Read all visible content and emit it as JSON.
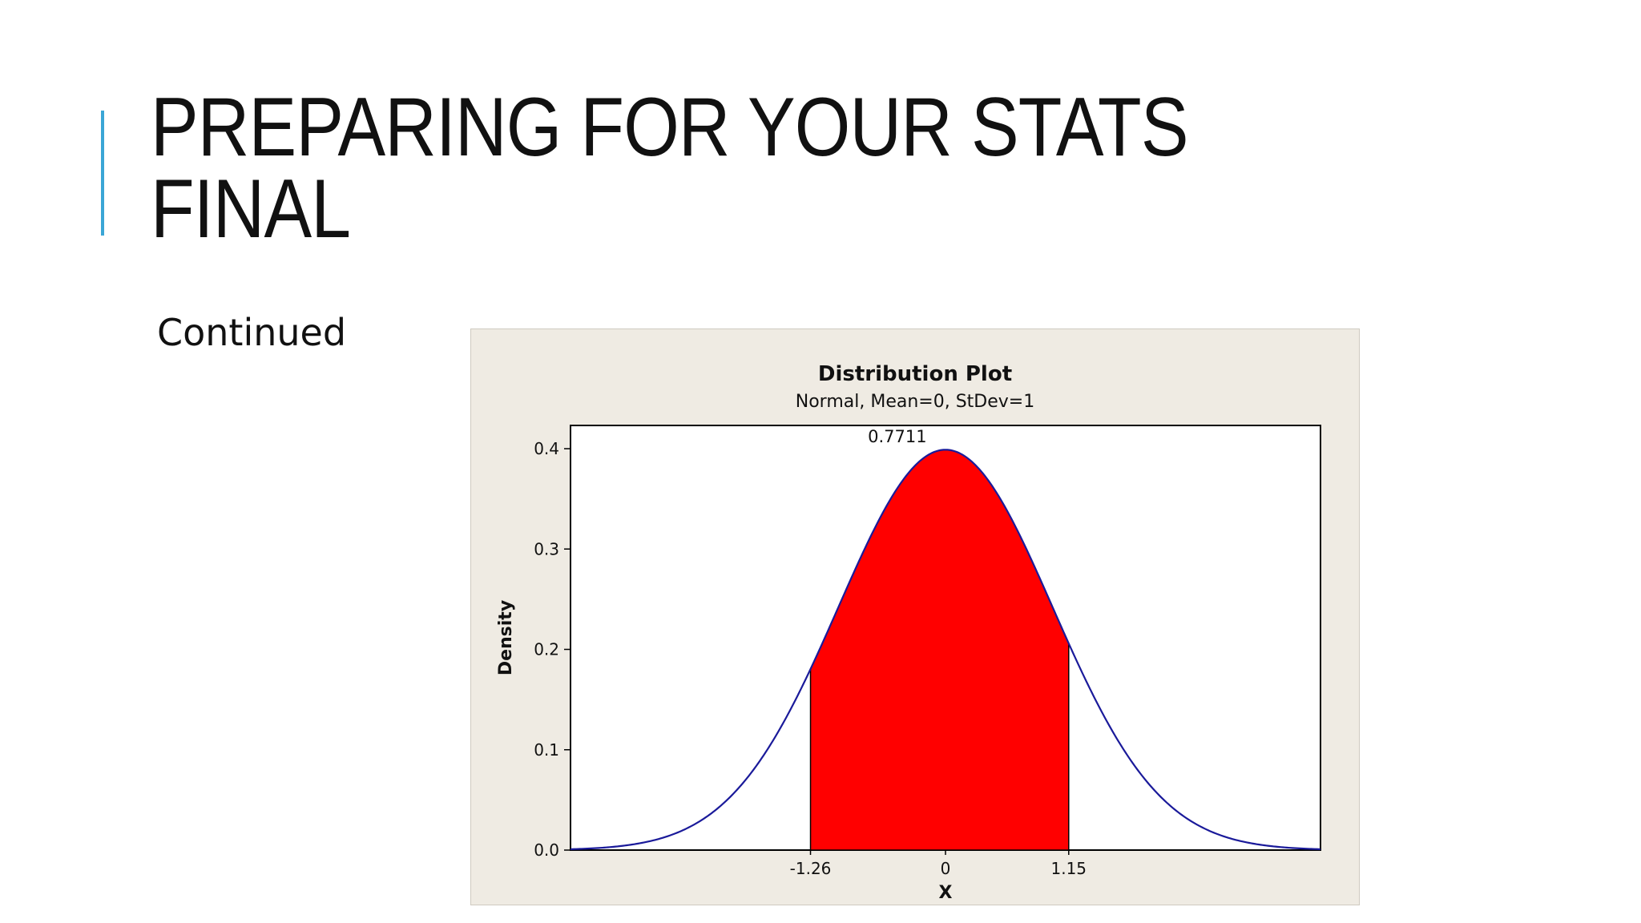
{
  "slide": {
    "title": "PREPARING FOR YOUR STATS FINAL",
    "subtitle": "Continued",
    "accent_color": "#3aa6d6"
  },
  "chart_data": {
    "type": "area",
    "title": "Distribution Plot",
    "subtitle": "Normal, Mean=0, StDev=1",
    "distribution": {
      "name": "Normal",
      "mean": 0,
      "stdev": 1
    },
    "xlabel": "X",
    "ylabel": "Density",
    "xlim": [
      -3.5,
      3.5
    ],
    "ylim": [
      0,
      0.4
    ],
    "yticks": [
      0.0,
      0.1,
      0.2,
      0.3,
      0.4
    ],
    "y_tick_labels": [
      "0.0",
      "0.1",
      "0.2",
      "0.3",
      "0.4"
    ],
    "shaded_region": {
      "lower": -1.26,
      "upper": 1.15,
      "area": 0.7711
    },
    "x_marker_labels": [
      "-1.26",
      "0",
      "1.15"
    ],
    "area_label": "0.7711",
    "grid": false,
    "colors": {
      "curve": "#1a1a9a",
      "fill": "#ff0000",
      "panel": "#efebe3",
      "plot_bg": "#ffffff"
    }
  }
}
